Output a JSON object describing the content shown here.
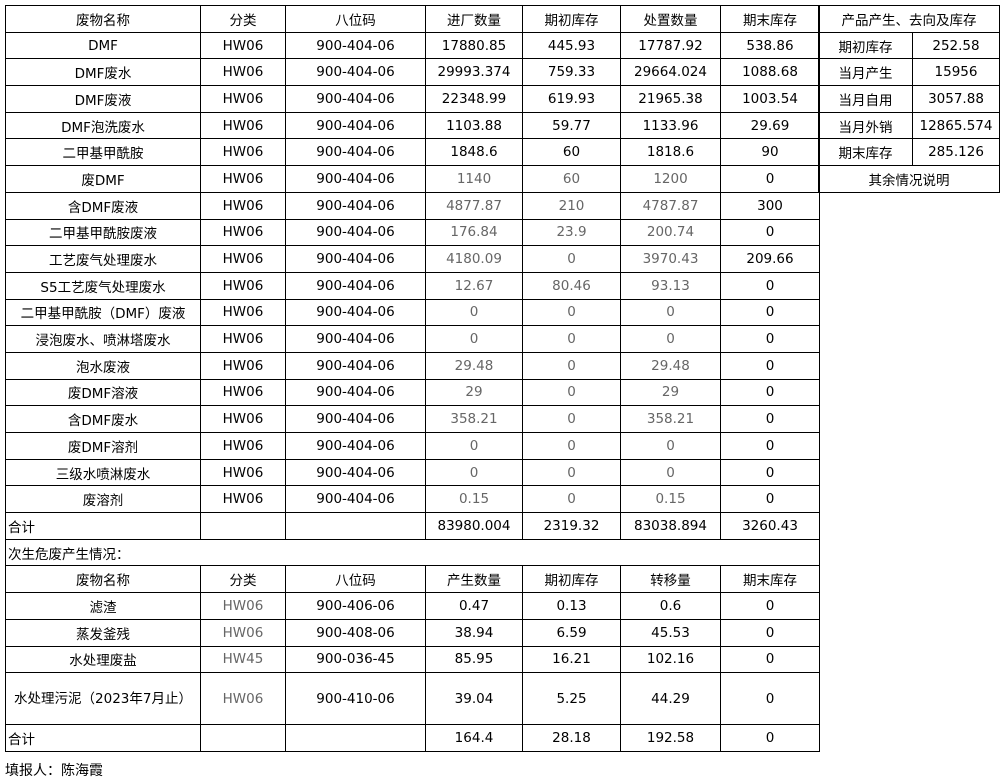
{
  "main_table": {
    "headers": [
      "废物名称",
      "分类",
      "八位码",
      "进厂数量",
      "期初库存",
      "处置数量",
      "期末库存"
    ],
    "rows": [
      [
        "DMF",
        "HW06",
        "900-404-06",
        "17880.85",
        "445.93",
        "17787.92",
        "538.86"
      ],
      [
        "DMF废水",
        "HW06",
        "900-404-06",
        "29993.374",
        "759.33",
        "29664.024",
        "1088.68"
      ],
      [
        "DMF废液",
        "HW06",
        "900-404-06",
        "22348.99",
        "619.93",
        "21965.38",
        "1003.54"
      ],
      [
        "DMF泡洗废水",
        "HW06",
        "900-404-06",
        "1103.88",
        "59.77",
        "1133.96",
        "29.69"
      ],
      [
        "二甲基甲酰胺",
        "HW06",
        "900-404-06",
        "1848.6",
        "60",
        "1818.6",
        "90"
      ],
      [
        "废DMF",
        "HW06",
        "900-404-06",
        "1140",
        "60",
        "1200",
        "0"
      ],
      [
        "含DMF废液",
        "HW06",
        "900-404-06",
        "4877.87",
        "210",
        "4787.87",
        "300"
      ],
      [
        "二甲基甲酰胺废液",
        "HW06",
        "900-404-06",
        "176.84",
        "23.9",
        "200.74",
        "0"
      ],
      [
        "工艺废气处理废水",
        "HW06",
        "900-404-06",
        "4180.09",
        "0",
        "3970.43",
        "209.66"
      ],
      [
        "S5工艺废气处理废水",
        "HW06",
        "900-404-06",
        "12.67",
        "80.46",
        "93.13",
        "0"
      ],
      [
        "二甲基甲酰胺（DMF）废液",
        "HW06",
        "900-404-06",
        "0",
        "0",
        "0",
        "0"
      ],
      [
        "浸泡废水、喷淋塔废水",
        "HW06",
        "900-404-06",
        "0",
        "0",
        "0",
        "0"
      ],
      [
        "泡水废液",
        "HW06",
        "900-404-06",
        "29.48",
        "0",
        "29.48",
        "0"
      ],
      [
        "废DMF溶液",
        "HW06",
        "900-404-06",
        "29",
        "0",
        "29",
        "0"
      ],
      [
        "含DMF废水",
        "HW06",
        "900-404-06",
        "358.21",
        "0",
        "358.21",
        "0"
      ],
      [
        "废DMF溶剂",
        "HW06",
        "900-404-06",
        "0",
        "0",
        "0",
        "0"
      ],
      [
        "三级水喷淋废水",
        "HW06",
        "900-404-06",
        "0",
        "0",
        "0",
        "0"
      ],
      [
        "废溶剂",
        "HW06",
        "900-404-06",
        "0.15",
        "0",
        "0.15",
        "0"
      ]
    ],
    "total": [
      "合计",
      "",
      "",
      "83980.004",
      "2319.32",
      "83038.894",
      "3260.43"
    ]
  },
  "secondary": {
    "title": "次生危废产生情况：",
    "headers": [
      "废物名称",
      "分类",
      "八位码",
      "产生数量",
      "期初库存",
      "转移量",
      "期末库存"
    ],
    "rows": [
      [
        "滤渣",
        "HW06",
        "900-406-06",
        "0.47",
        "0.13",
        "0.6",
        "0"
      ],
      [
        "蒸发釜残",
        "HW06",
        "900-408-06",
        "38.94",
        "6.59",
        "45.53",
        "0"
      ],
      [
        "水处理废盐",
        "HW45",
        "900-036-45",
        "85.95",
        "16.21",
        "102.16",
        "0"
      ],
      [
        "水处理污泥（2023年7月止）",
        "HW06",
        "900-410-06",
        "39.04",
        "5.25",
        "44.29",
        "0"
      ]
    ],
    "total": [
      "合计",
      "",
      "",
      "164.4",
      "28.18",
      "192.58",
      "0"
    ]
  },
  "product": {
    "title": "产品产生、去向及库存",
    "rows": [
      [
        "期初库存",
        "252.58"
      ],
      [
        "当月产生",
        "15956"
      ],
      [
        "当月自用",
        "3057.88"
      ],
      [
        "当月外销",
        "12865.574"
      ],
      [
        "期末库存",
        "285.126"
      ]
    ],
    "note_label": "其余情况说明"
  },
  "footer": {
    "reporter": "填报人：陈海霞"
  },
  "colors": {
    "muted_text": "#666666",
    "border": "#000000"
  }
}
